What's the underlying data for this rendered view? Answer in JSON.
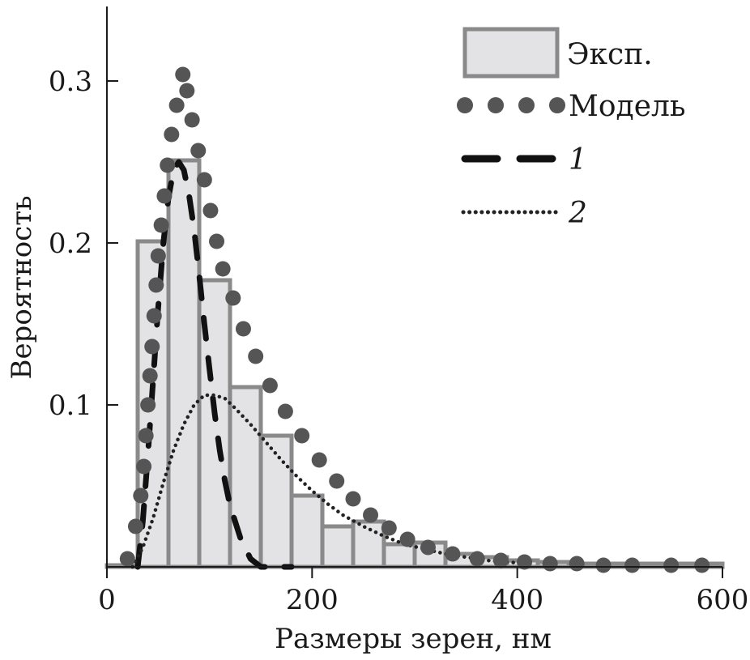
{
  "chart_data": {
    "type": "bar",
    "title": "",
    "xlabel": "Размеры зерен, нм",
    "ylabel": "Вероятность",
    "xlim": [
      0,
      600
    ],
    "ylim": [
      0,
      0.35
    ],
    "x_ticks": [
      0,
      200,
      400,
      600
    ],
    "x_tick_labels": [
      "0",
      "200",
      "400",
      "600"
    ],
    "y_ticks": [
      0.1,
      0.2,
      0.3
    ],
    "y_tick_labels": [
      "0.1",
      "0.2",
      "0.3"
    ],
    "grid": false,
    "legend_position": "top-right",
    "legend": [
      {
        "key": "exp",
        "label": "Эксп."
      },
      {
        "key": "model",
        "label": "Модель"
      },
      {
        "key": "c1",
        "label": "1"
      },
      {
        "key": "c2",
        "label": "2"
      }
    ],
    "histogram": {
      "name": "Эксп.",
      "bin_width": 30,
      "bin_starts": [
        -30,
        0,
        30,
        60,
        90,
        120,
        150,
        180,
        210,
        240,
        270,
        300,
        330,
        360,
        390,
        420,
        450,
        480,
        510,
        540,
        570
      ],
      "values": [
        0.0,
        0.001,
        0.201,
        0.251,
        0.177,
        0.111,
        0.081,
        0.044,
        0.025,
        0.028,
        0.014,
        0.015,
        0.008,
        0.006,
        0.004,
        0.003,
        0.002,
        0.002,
        0.002,
        0.002,
        0.002
      ],
      "fill": "#e3e3e6",
      "stroke": "#8a8a8a"
    },
    "series": [
      {
        "name": "Модель",
        "style": "dots",
        "color": "#555555",
        "x": [
          20,
          28,
          33,
          36,
          38,
          40,
          42,
          44,
          46,
          48,
          50,
          53,
          56,
          59,
          63,
          68,
          74,
          78,
          83,
          89,
          95,
          101,
          107,
          113,
          123,
          133,
          145,
          159,
          174,
          190,
          207,
          224,
          240,
          257,
          275,
          293,
          313,
          337,
          361,
          384,
          407,
          432,
          458,
          484,
          512,
          550,
          580
        ],
        "y": [
          0.005,
          0.025,
          0.044,
          0.062,
          0.081,
          0.1,
          0.118,
          0.136,
          0.155,
          0.174,
          0.192,
          0.211,
          0.229,
          0.248,
          0.267,
          0.285,
          0.304,
          0.294,
          0.276,
          0.257,
          0.239,
          0.22,
          0.201,
          0.184,
          0.166,
          0.147,
          0.13,
          0.112,
          0.096,
          0.081,
          0.066,
          0.053,
          0.042,
          0.032,
          0.024,
          0.017,
          0.012,
          0.008,
          0.005,
          0.004,
          0.003,
          0.002,
          0.002,
          0.001,
          0.001,
          0.001,
          0.001
        ]
      },
      {
        "name": "1",
        "style": "dashed",
        "color": "#111111",
        "x": [
          30,
          35,
          40,
          45,
          50,
          55,
          60,
          65,
          70,
          75,
          80,
          85,
          90,
          95,
          100,
          105,
          110,
          115,
          120,
          130,
          140,
          150,
          160,
          170,
          180
        ],
        "y": [
          0.0,
          0.028,
          0.07,
          0.115,
          0.16,
          0.2,
          0.228,
          0.245,
          0.25,
          0.245,
          0.23,
          0.208,
          0.18,
          0.15,
          0.122,
          0.095,
          0.072,
          0.053,
          0.038,
          0.018,
          0.005,
          0.0,
          0.0,
          0.0,
          0.0
        ]
      },
      {
        "name": "2",
        "style": "dotted",
        "color": "#222222",
        "x": [
          25,
          35,
          45,
          55,
          65,
          75,
          85,
          95,
          105,
          115,
          125,
          140,
          155,
          170,
          185,
          200,
          215,
          230,
          250,
          270,
          290,
          310,
          330,
          350,
          370,
          390,
          410
        ],
        "y": [
          0.0,
          0.012,
          0.03,
          0.052,
          0.072,
          0.088,
          0.1,
          0.106,
          0.106,
          0.104,
          0.098,
          0.088,
          0.077,
          0.066,
          0.056,
          0.047,
          0.039,
          0.032,
          0.025,
          0.019,
          0.014,
          0.011,
          0.008,
          0.006,
          0.004,
          0.003,
          0.002
        ]
      }
    ]
  }
}
